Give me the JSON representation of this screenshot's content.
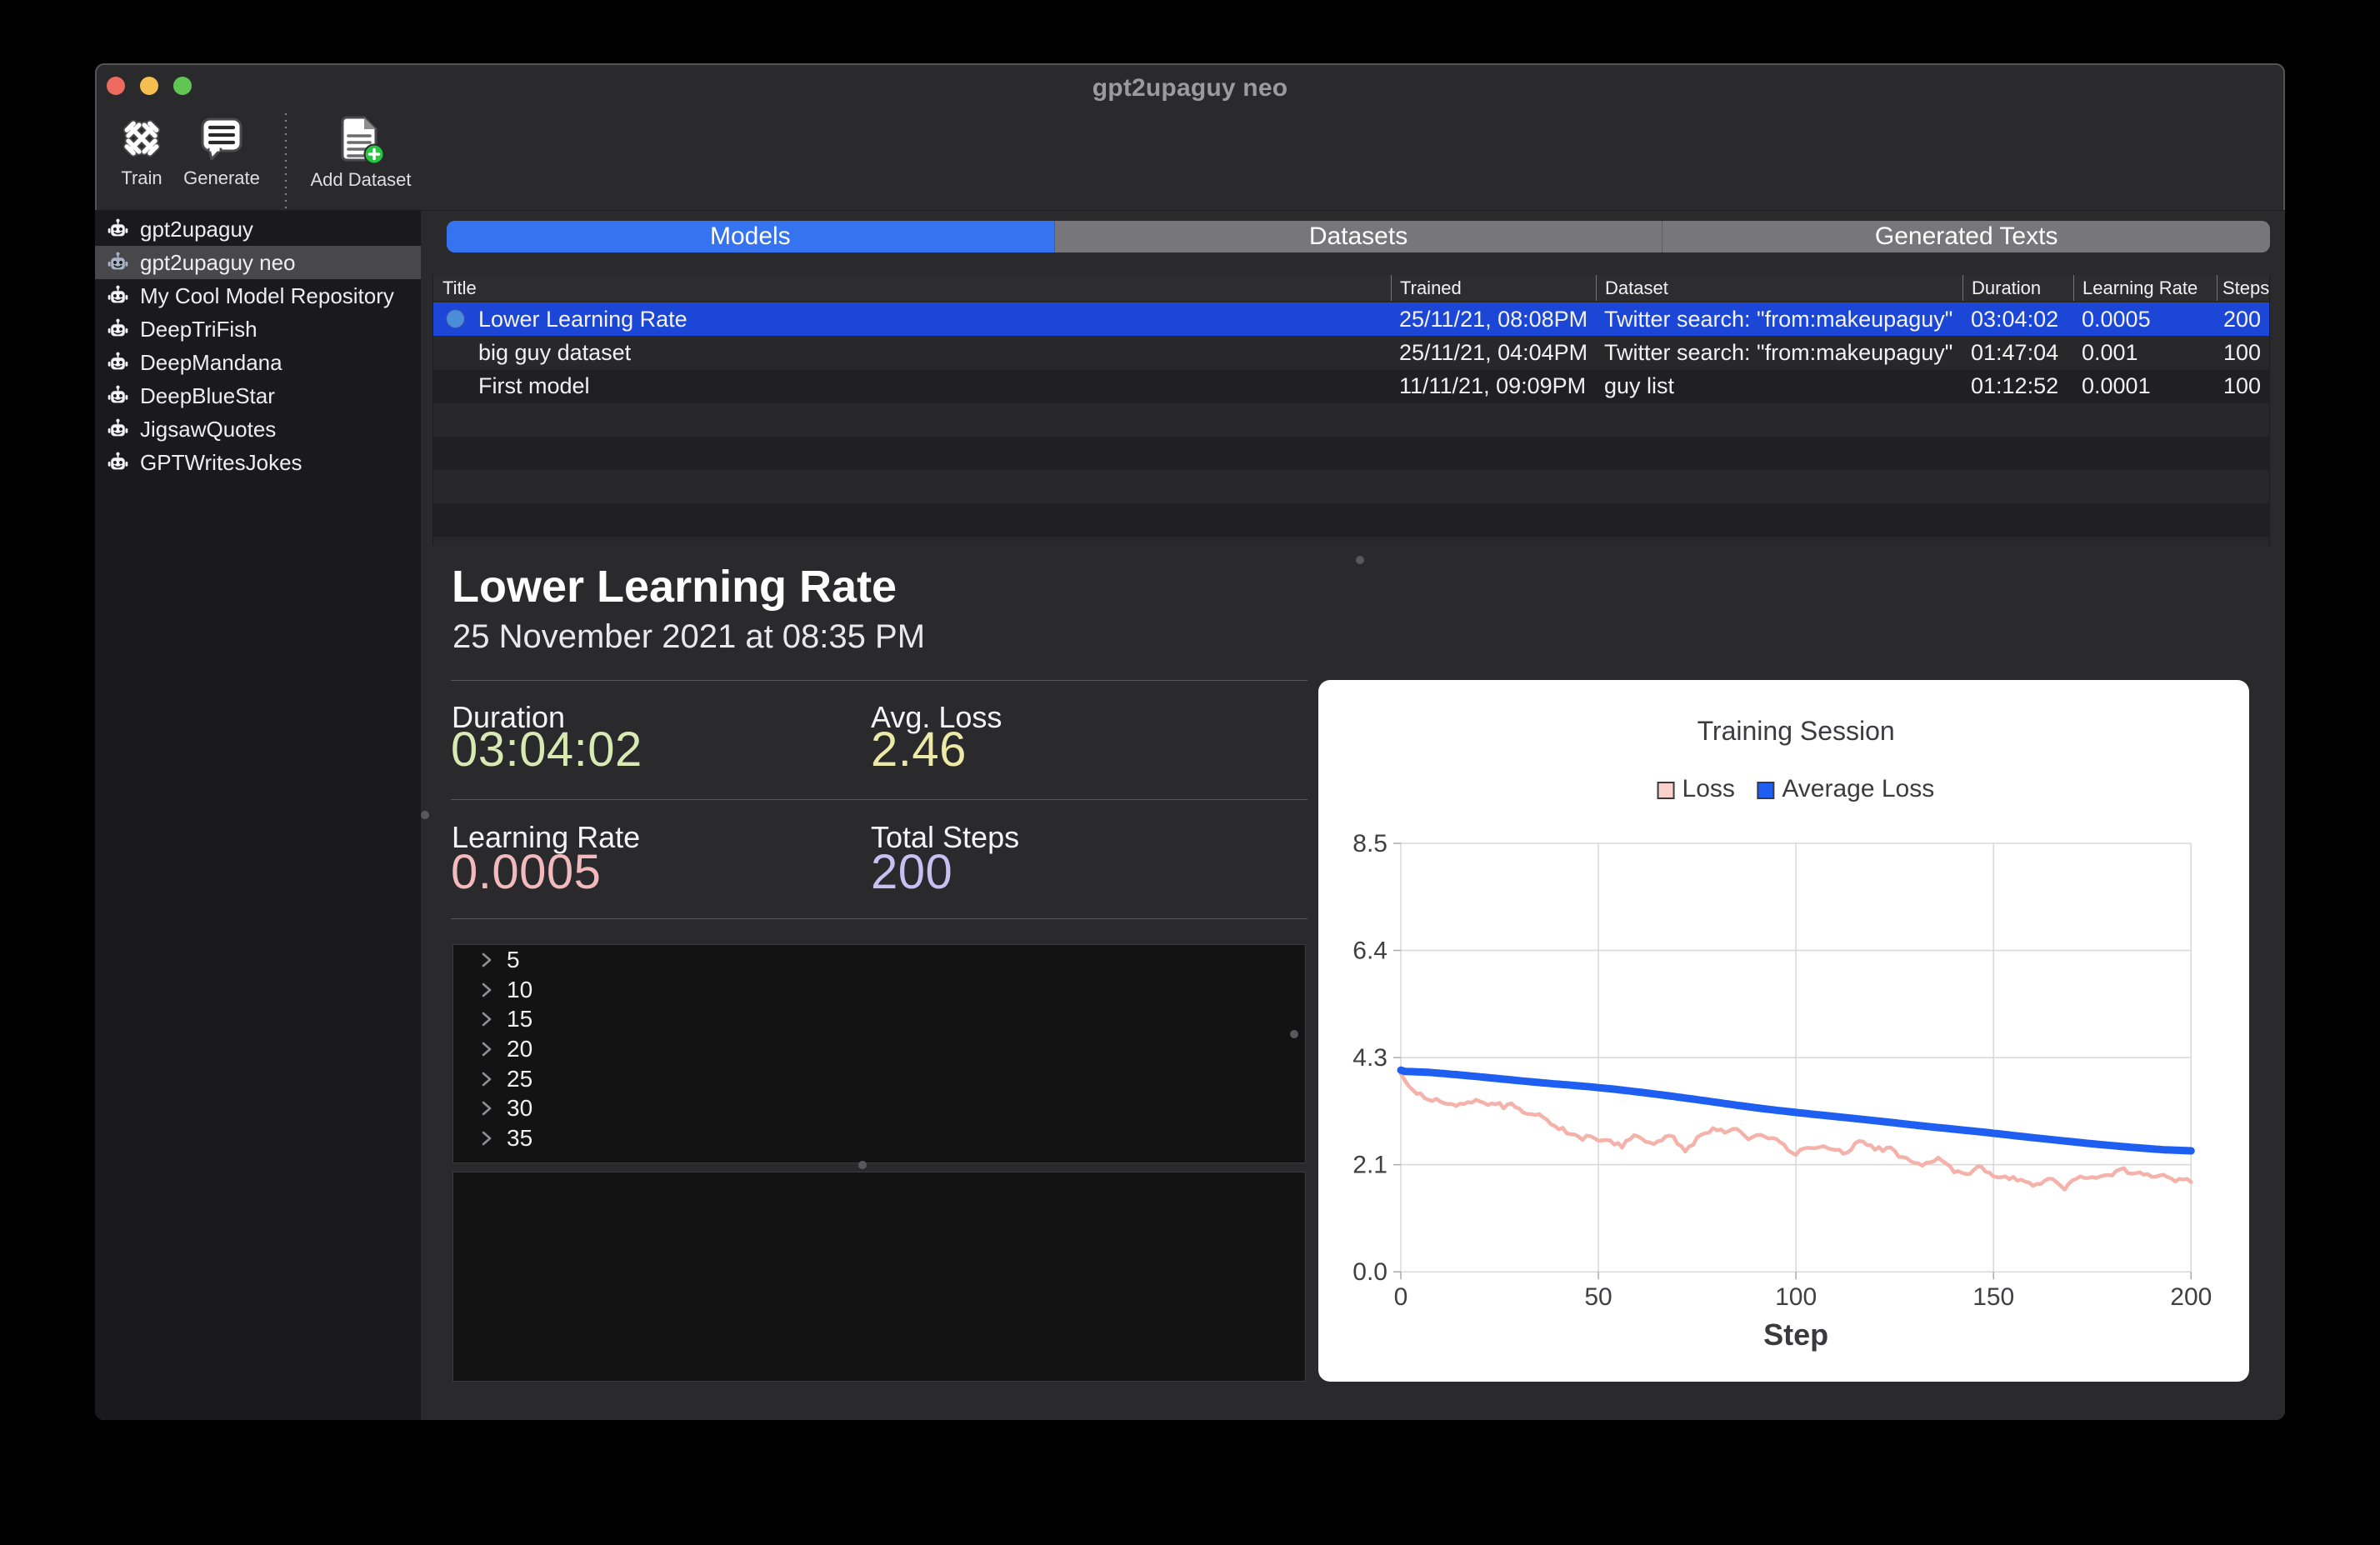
{
  "window": {
    "title": "gpt2upaguy neo",
    "traffic_lights": [
      "close",
      "minimize",
      "zoom"
    ],
    "traffic_colors": {
      "close": "#ec6a5e",
      "minimize": "#f4bf50",
      "zoom": "#61c554"
    }
  },
  "toolbar": {
    "train_label": "Train",
    "generate_label": "Generate",
    "add_dataset_label": "Add Dataset"
  },
  "sidebar": {
    "items": [
      {
        "label": "gpt2upaguy",
        "selected": false
      },
      {
        "label": "gpt2upaguy neo",
        "selected": true
      },
      {
        "label": "My Cool Model Repository",
        "selected": false
      },
      {
        "label": "DeepTriFish",
        "selected": false
      },
      {
        "label": "DeepMandana",
        "selected": false
      },
      {
        "label": "DeepBlueStar",
        "selected": false
      },
      {
        "label": "JigsawQuotes",
        "selected": false
      },
      {
        "label": "GPTWritesJokes",
        "selected": false
      }
    ]
  },
  "tabs": {
    "items": [
      {
        "label": "Models",
        "selected": true
      },
      {
        "label": "Datasets",
        "selected": false
      },
      {
        "label": "Generated Texts",
        "selected": false
      }
    ]
  },
  "table": {
    "columns": [
      "Title",
      "Trained",
      "Dataset",
      "Duration",
      "Learning Rate",
      "Steps"
    ],
    "rows": [
      {
        "title": "Lower Learning Rate",
        "trained": "25/11/21, 08:08PM",
        "dataset": "Twitter search: \"from:makeupaguy\"",
        "duration": "03:04:02",
        "learning_rate": "0.0005",
        "steps": "200",
        "selected": true
      },
      {
        "title": "big guy dataset",
        "trained": "25/11/21, 04:04PM",
        "dataset": "Twitter search: \"from:makeupaguy\"",
        "duration": "01:47:04",
        "learning_rate": "0.001",
        "steps": "100",
        "selected": false
      },
      {
        "title": "First model",
        "trained": "11/11/21, 09:09PM",
        "dataset": "guy list",
        "duration": "01:12:52",
        "learning_rate": "0.0001",
        "steps": "100",
        "selected": false
      }
    ]
  },
  "detail": {
    "heading": "Lower Learning Rate",
    "date": "25 November 2021 at 08:35 PM",
    "stats": {
      "duration_label": "Duration",
      "duration_value": "03:04:02",
      "duration_color": "#d9e9b4",
      "avg_loss_label": "Avg. Loss",
      "avg_loss_value": "2.46",
      "avg_loss_color": "#edeaa9",
      "learning_rate_label": "Learning Rate",
      "learning_rate_value": "0.0005",
      "learning_rate_color": "#f2babc",
      "total_steps_label": "Total Steps",
      "total_steps_value": "200",
      "total_steps_color": "#c8c0f2"
    },
    "outline_items": [
      {
        "label": "5"
      },
      {
        "label": "10"
      },
      {
        "label": "15"
      },
      {
        "label": "20"
      },
      {
        "label": "25"
      },
      {
        "label": "30"
      },
      {
        "label": "35"
      }
    ]
  },
  "chart_data": {
    "type": "line",
    "title": "Training Session",
    "xlabel": "Step",
    "ylabel": "",
    "xlim": [
      0,
      200
    ],
    "ylim": [
      0,
      8.5
    ],
    "x_ticks": [
      0,
      50,
      100,
      150,
      200
    ],
    "x_tick_labels": [
      "0",
      "50",
      "100",
      "150",
      "200"
    ],
    "y_ticks": [
      0,
      2.125,
      4.25,
      6.375,
      8.5
    ],
    "y_tick_labels": [
      "0.0",
      "2.1",
      "4.3",
      "6.4",
      "8.5"
    ],
    "grid": true,
    "legend_position": "top",
    "series": [
      {
        "name": "Loss",
        "color": "#f5b2ab",
        "swatch_fill": "#f9d2ce",
        "swatch_border": "#3a3a3e",
        "width": 4.5,
        "values": [
          3.93,
          3.8,
          3.684,
          3.609,
          3.531,
          3.541,
          3.449,
          3.412,
          3.388,
          3.432,
          3.376,
          3.342,
          3.329,
          3.327,
          3.29,
          3.337,
          3.327,
          3.368,
          3.355,
          3.413,
          3.381,
          3.354,
          3.308,
          3.34,
          3.324,
          3.35,
          3.244,
          3.321,
          3.339,
          3.266,
          3.238,
          3.159,
          3.132,
          3.13,
          3.113,
          3.129,
          3.067,
          3.017,
          2.928,
          2.892,
          2.826,
          2.857,
          2.747,
          2.729,
          2.724,
          2.681,
          2.617,
          2.701,
          2.69,
          2.653,
          2.6,
          2.608,
          2.613,
          2.607,
          2.524,
          2.554,
          2.463,
          2.601,
          2.627,
          2.71,
          2.687,
          2.641,
          2.58,
          2.568,
          2.532,
          2.589,
          2.604,
          2.683,
          2.702,
          2.682,
          2.538,
          2.492,
          2.387,
          2.489,
          2.52,
          2.669,
          2.718,
          2.751,
          2.759,
          2.851,
          2.807,
          2.824,
          2.761,
          2.792,
          2.834,
          2.837,
          2.777,
          2.7,
          2.628,
          2.672,
          2.711,
          2.72,
          2.686,
          2.647,
          2.653,
          2.636,
          2.571,
          2.524,
          2.408,
          2.362,
          2.317,
          2.416,
          2.446,
          2.462,
          2.455,
          2.454,
          2.474,
          2.493,
          2.455,
          2.431,
          2.416,
          2.421,
          2.343,
          2.367,
          2.424,
          2.556,
          2.595,
          2.582,
          2.514,
          2.51,
          2.42,
          2.477,
          2.393,
          2.463,
          2.464,
          2.4,
          2.282,
          2.275,
          2.258,
          2.196,
          2.16,
          2.153,
          2.104,
          2.166,
          2.172,
          2.197,
          2.264,
          2.202,
          2.147,
          2.096,
          1.973,
          1.998,
          1.965,
          1.943,
          1.941,
          2.02,
          2.093,
          2.079,
          1.985,
          1.967,
          1.893,
          1.874,
          1.878,
          1.892,
          1.839,
          1.885,
          1.808,
          1.828,
          1.79,
          1.77,
          1.706,
          1.746,
          1.744,
          1.812,
          1.849,
          1.842,
          1.773,
          1.707,
          1.63,
          1.745,
          1.817,
          1.848,
          1.892,
          1.863,
          1.861,
          1.879,
          1.861,
          1.891,
          1.912,
          1.921,
          1.909,
          1.997,
          2.032,
          2.057,
          1.959,
          1.946,
          1.957,
          1.973,
          1.925,
          1.941,
          1.886,
          1.884,
          1.911,
          1.926,
          1.882,
          1.851,
          1.791,
          1.845,
          1.833,
          1.843,
          1.781
        ]
      },
      {
        "name": "Average Loss",
        "color": "#1e5ff2",
        "swatch_fill": "#1e5ff2",
        "swatch_border": "#3a3a3e",
        "width": 9,
        "values": [
          4.0,
          3.976,
          3.973,
          3.97,
          3.967,
          3.964,
          3.961,
          3.957,
          3.951,
          3.945,
          3.938,
          3.932,
          3.925,
          3.918,
          3.912,
          3.905,
          3.898,
          3.89,
          3.883,
          3.876,
          3.868,
          3.861,
          3.853,
          3.845,
          3.838,
          3.83,
          3.822,
          3.815,
          3.807,
          3.799,
          3.792,
          3.784,
          3.777,
          3.77,
          3.762,
          3.755,
          3.748,
          3.742,
          3.735,
          3.728,
          3.722,
          3.715,
          3.709,
          3.703,
          3.696,
          3.69,
          3.683,
          3.676,
          3.669,
          3.662,
          3.654,
          3.647,
          3.639,
          3.631,
          3.623,
          3.614,
          3.605,
          3.596,
          3.587,
          3.578,
          3.568,
          3.559,
          3.549,
          3.539,
          3.53,
          3.52,
          3.51,
          3.499,
          3.489,
          3.479,
          3.468,
          3.458,
          3.447,
          3.436,
          3.426,
          3.415,
          3.404,
          3.393,
          3.382,
          3.371,
          3.36,
          3.349,
          3.338,
          3.327,
          3.316,
          3.305,
          3.295,
          3.284,
          3.274,
          3.264,
          3.254,
          3.244,
          3.234,
          3.224,
          3.215,
          3.206,
          3.197,
          3.188,
          3.179,
          3.17,
          3.162,
          3.153,
          3.145,
          3.137,
          3.128,
          3.12,
          3.112,
          3.104,
          3.096,
          3.088,
          3.08,
          3.072,
          3.064,
          3.056,
          3.048,
          3.04,
          3.032,
          3.023,
          3.015,
          3.007,
          2.998,
          2.99,
          2.981,
          2.972,
          2.964,
          2.955,
          2.946,
          2.938,
          2.929,
          2.92,
          2.912,
          2.903,
          2.895,
          2.887,
          2.878,
          2.87,
          2.862,
          2.854,
          2.846,
          2.838,
          2.83,
          2.822,
          2.814,
          2.806,
          2.798,
          2.79,
          2.782,
          2.773,
          2.765,
          2.757,
          2.748,
          2.74,
          2.731,
          2.722,
          2.714,
          2.705,
          2.696,
          2.688,
          2.679,
          2.67,
          2.662,
          2.653,
          2.645,
          2.637,
          2.628,
          2.62,
          2.612,
          2.604,
          2.596,
          2.588,
          2.58,
          2.572,
          2.564,
          2.556,
          2.548,
          2.54,
          2.533,
          2.525,
          2.518,
          2.511,
          2.504,
          2.497,
          2.49,
          2.483,
          2.477,
          2.47,
          2.464,
          2.458,
          2.452,
          2.446,
          2.44,
          2.434,
          2.428,
          2.422,
          2.419,
          2.416,
          2.413,
          2.41,
          2.407,
          2.404,
          2.401
        ]
      }
    ]
  }
}
